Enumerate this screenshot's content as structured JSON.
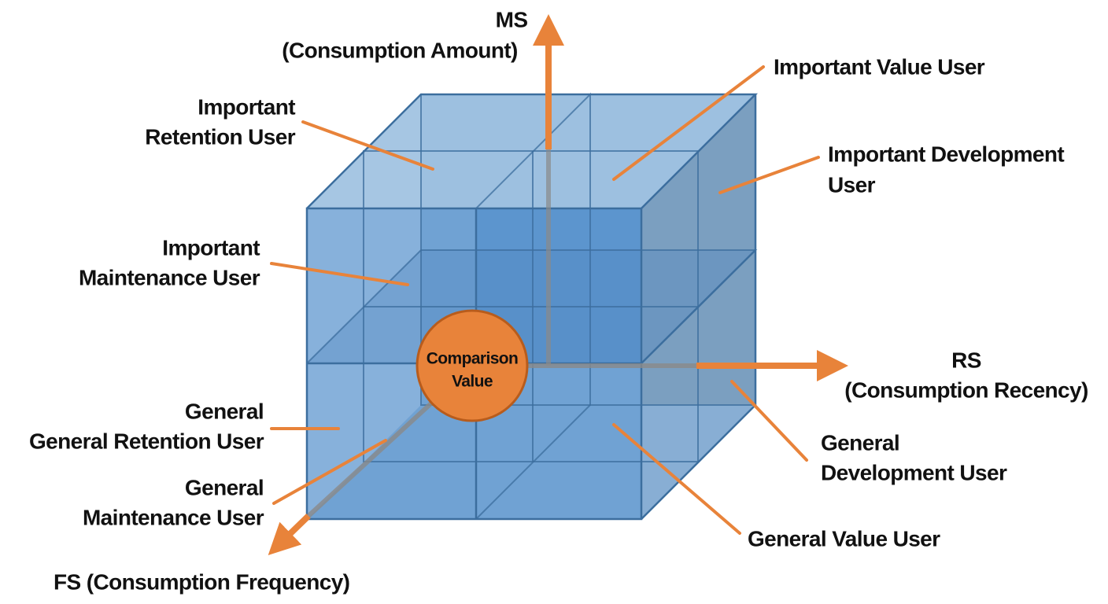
{
  "axes": {
    "ms": [
      "MS",
      "(Consumption Amount)"
    ],
    "rs": [
      "RS",
      "(Consumption Recency)"
    ],
    "fs": [
      "FS (Consumption Frequency)"
    ]
  },
  "center": [
    "Comparison",
    "Value"
  ],
  "segments": [
    {
      "label": [
        "Important",
        "Retention User"
      ]
    },
    {
      "label": [
        "Important Value User"
      ]
    },
    {
      "label": [
        "Important Development",
        "User"
      ]
    },
    {
      "label": [
        "Important",
        "Maintenance User"
      ]
    },
    {
      "label": [
        "General",
        "General Retention User"
      ]
    },
    {
      "label": [
        "General",
        "Maintenance User"
      ]
    },
    {
      "label": [
        "General",
        "Development User"
      ]
    },
    {
      "label": [
        "General Value User"
      ]
    }
  ]
}
